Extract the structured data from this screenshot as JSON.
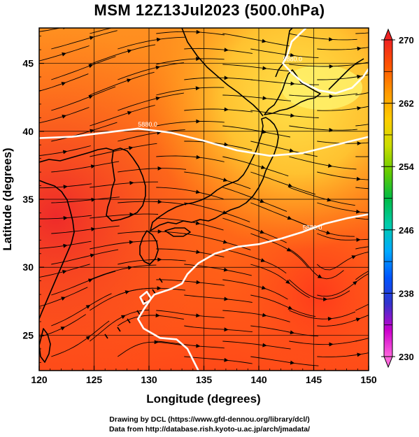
{
  "title": "MSM 12Z13Jul2023 (500.0hPa)",
  "x_axis": {
    "label": "Longitude (degrees)",
    "range": [
      120,
      150
    ],
    "ticks": [
      "120",
      "125",
      "130",
      "135",
      "140",
      "145",
      "150"
    ]
  },
  "y_axis": {
    "label": "Latitude  (degrees)",
    "range": [
      22.4,
      47.6
    ],
    "ticks": [
      "25",
      "30",
      "35",
      "40",
      "45"
    ]
  },
  "colorbar": {
    "range": [
      230,
      270
    ],
    "ticks": [
      "230",
      "238",
      "246",
      "254",
      "262",
      "270"
    ],
    "colors": [
      "#ff66dd",
      "#cc00cc",
      "#3333cc",
      "#0055ff",
      "#00aaff",
      "#00ccaa",
      "#00bb44",
      "#66cc00",
      "#ccdd00",
      "#ffcc00",
      "#ff9900",
      "#ff5500",
      "#ee2222"
    ]
  },
  "contours": [
    {
      "label": "5880.0",
      "lonlat": [
        [
          120,
          39.5
        ],
        [
          123,
          39.6
        ],
        [
          126,
          39.9
        ],
        [
          129,
          40.2
        ],
        [
          132,
          39.9
        ],
        [
          135,
          39.3
        ],
        [
          138,
          38.6
        ],
        [
          141,
          38.2
        ],
        [
          144,
          38.4
        ],
        [
          147,
          39.0
        ],
        [
          150,
          39.6
        ]
      ]
    },
    {
      "label": "5880.0",
      "lonlat": [
        [
          144.3,
          47.6
        ],
        [
          143.0,
          46.6
        ],
        [
          142.6,
          45.6
        ],
        [
          142.2,
          45.0
        ],
        [
          143.0,
          44.3
        ],
        [
          144.0,
          43.6
        ],
        [
          145.5,
          43.0
        ],
        [
          147.0,
          42.8
        ],
        [
          148.5,
          43.2
        ],
        [
          149.5,
          44.0
        ],
        [
          150,
          44.6
        ]
      ]
    },
    {
      "label": "5880.0",
      "lonlat": [
        [
          150,
          33.9
        ],
        [
          148,
          33.6
        ],
        [
          146,
          33.2
        ],
        [
          144,
          32.6
        ],
        [
          142,
          32.1
        ],
        [
          140,
          31.7
        ],
        [
          138,
          31.5
        ],
        [
          136,
          31.0
        ],
        [
          134.5,
          30.3
        ],
        [
          133.5,
          29.5
        ],
        [
          133,
          28.8
        ],
        [
          132,
          28.4
        ],
        [
          130.5,
          28.0
        ],
        [
          130,
          27.5
        ],
        [
          129.5,
          27.3
        ],
        [
          129.2,
          27.8
        ],
        [
          129.8,
          28.2
        ],
        [
          130.2,
          27.7
        ],
        [
          129.6,
          27.0
        ],
        [
          129.0,
          26.2
        ],
        [
          129.5,
          25.5
        ],
        [
          131,
          24.8
        ],
        [
          132.5,
          24.7
        ],
        [
          133.5,
          24.0
        ],
        [
          134.5,
          22.4
        ]
      ]
    }
  ],
  "credit": {
    "line1": "Drawing by DCL (https://www.gfd-dennou.org/library/dcl/)",
    "line2": "Data from http://database.rish.kyoto-u.ac.jp/arch/jmadata/"
  }
}
